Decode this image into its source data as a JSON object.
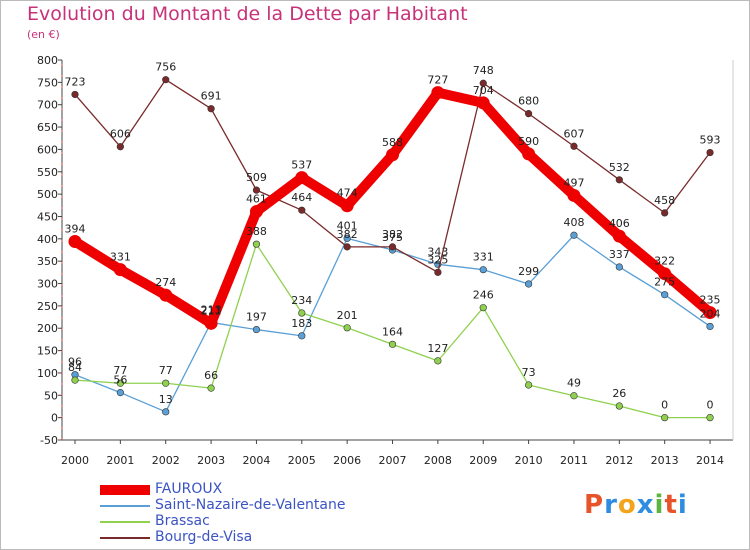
{
  "header": {
    "title": "Evolution du Montant de la Dette par Habitant",
    "subtitle": "(en €)"
  },
  "logo": {
    "text": "Proxiti",
    "colors": [
      "#e8532a",
      "#2e8de0",
      "#f2a51c",
      "#2e8de0",
      "#5bb540",
      "#e8532a",
      "#2e8de0"
    ]
  },
  "chart_data": {
    "type": "line",
    "categories": [
      "2000",
      "2001",
      "2002",
      "2003",
      "2004",
      "2005",
      "2006",
      "2007",
      "2008",
      "2009",
      "2010",
      "2011",
      "2012",
      "2013",
      "2014"
    ],
    "ylim": [
      -50,
      800
    ],
    "yticks": [
      -50,
      0,
      50,
      100,
      150,
      200,
      250,
      300,
      350,
      400,
      450,
      500,
      550,
      600,
      650,
      700,
      750,
      800
    ],
    "grid": false,
    "legend_position": "bottom-left",
    "series": [
      {
        "name": "FAUROUX",
        "color": "#ee0000",
        "values": [
          394,
          331,
          274,
          211,
          461,
          537,
          474,
          588,
          727,
          704,
          590,
          497,
          406,
          322,
          235
        ]
      },
      {
        "name": "Saint-Nazaire-de-Valentane",
        "color": "#5a9fd6",
        "values": [
          96,
          56,
          13,
          213,
          197,
          183,
          401,
          375,
          343,
          331,
          299,
          408,
          337,
          275,
          204
        ]
      },
      {
        "name": "Brassac",
        "color": "#8fd14f",
        "values": [
          84,
          77,
          77,
          66,
          388,
          234,
          201,
          164,
          127,
          246,
          73,
          49,
          26,
          0,
          0
        ]
      },
      {
        "name": "Bourg-de-Visa",
        "color": "#7a2a2a",
        "values": [
          723,
          606,
          756,
          691,
          509,
          464,
          382,
          382,
          325,
          748,
          680,
          607,
          532,
          458,
          593
        ]
      }
    ]
  }
}
